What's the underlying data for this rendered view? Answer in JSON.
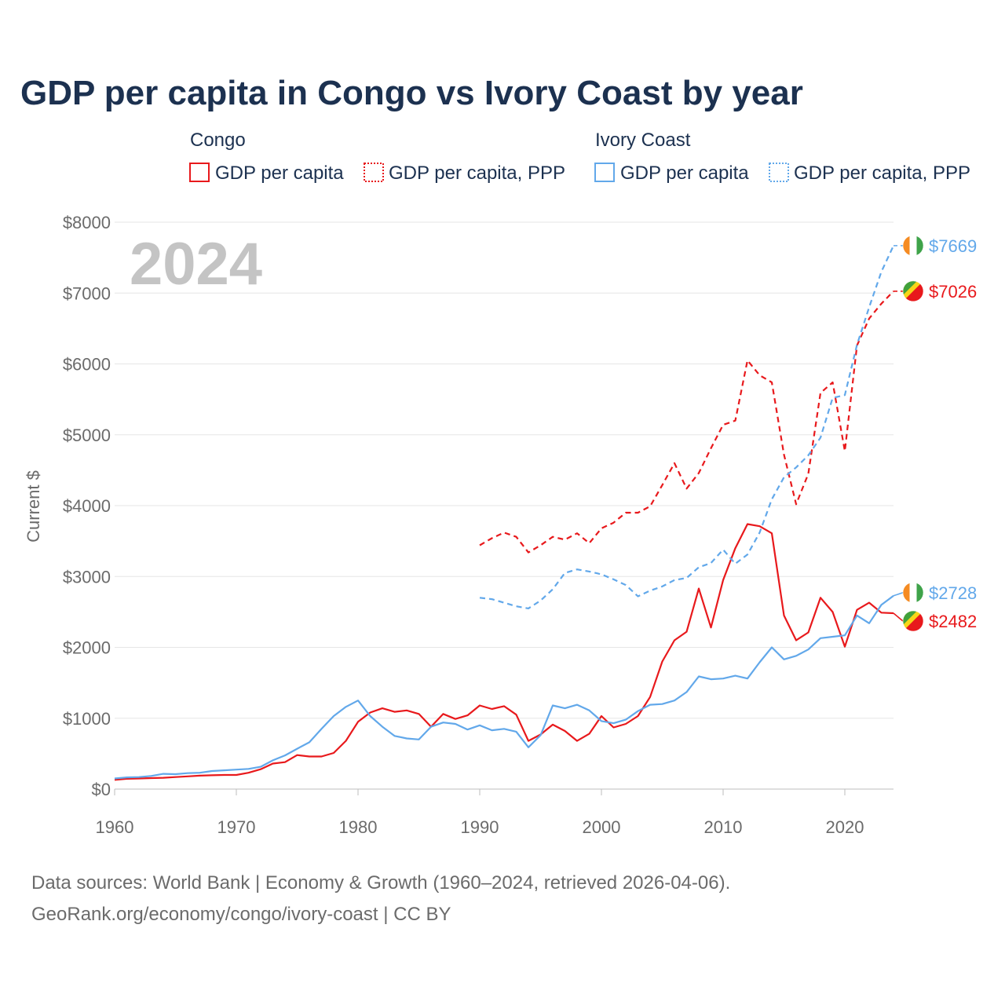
{
  "chart_data": {
    "type": "line",
    "title": "GDP per capita in Congo vs Ivory Coast by year",
    "ylabel": "Current $",
    "xlabel": "",
    "xlim": [
      1960,
      2024
    ],
    "ylim": [
      0,
      8000
    ],
    "x_ticks": [
      1960,
      1970,
      1980,
      1990,
      2000,
      2010,
      2020
    ],
    "x_tick_labels": [
      "1960",
      "1970",
      "1980",
      "1990",
      "2000",
      "2010",
      "2020"
    ],
    "y_ticks": [
      0,
      1000,
      2000,
      3000,
      4000,
      5000,
      6000,
      7000,
      8000
    ],
    "y_tick_labels": [
      "$0",
      "$1000",
      "$2000",
      "$3000",
      "$4000",
      "$5000",
      "$6000",
      "$7000",
      "$8000"
    ],
    "watermark_year": "2024",
    "grid": true,
    "legend": {
      "groups": [
        {
          "name": "Congo",
          "items": [
            "GDP per capita",
            "GDP per capita, PPP"
          ]
        },
        {
          "name": "Ivory Coast",
          "items": [
            "GDP per capita",
            "GDP per capita, PPP"
          ]
        }
      ]
    },
    "series": [
      {
        "name": "Congo GDP per capita",
        "country": "Congo",
        "color": "#e8191c",
        "dashed": false,
        "end_label": "$2482",
        "x": [
          1960,
          1961,
          1962,
          1963,
          1964,
          1965,
          1966,
          1967,
          1968,
          1969,
          1970,
          1971,
          1972,
          1973,
          1974,
          1975,
          1976,
          1977,
          1978,
          1979,
          1980,
          1981,
          1982,
          1983,
          1984,
          1985,
          1986,
          1987,
          1988,
          1989,
          1990,
          1991,
          1992,
          1993,
          1994,
          1995,
          1996,
          1997,
          1998,
          1999,
          2000,
          2001,
          2002,
          2003,
          2004,
          2005,
          2006,
          2007,
          2008,
          2009,
          2010,
          2011,
          2012,
          2013,
          2014,
          2015,
          2016,
          2017,
          2018,
          2019,
          2020,
          2021,
          2022,
          2023,
          2024
        ],
        "values": [
          130,
          145,
          150,
          155,
          160,
          170,
          180,
          190,
          195,
          200,
          200,
          230,
          280,
          360,
          380,
          480,
          460,
          460,
          510,
          680,
          950,
          1080,
          1140,
          1090,
          1110,
          1060,
          880,
          1060,
          990,
          1040,
          1180,
          1130,
          1170,
          1050,
          680,
          770,
          910,
          820,
          680,
          780,
          1030,
          870,
          920,
          1030,
          1300,
          1800,
          2100,
          2220,
          2830,
          2280,
          2950,
          3400,
          3740,
          3710,
          3610,
          2450,
          2100,
          2210,
          2700,
          2500,
          2010,
          2530,
          2630,
          2490,
          2482
        ]
      },
      {
        "name": "Congo GDP per capita, PPP",
        "country": "Congo",
        "color": "#e8191c",
        "dashed": true,
        "end_label": "$7026",
        "x": [
          1990,
          1991,
          1992,
          1993,
          1994,
          1995,
          1996,
          1997,
          1998,
          1999,
          2000,
          2001,
          2002,
          2003,
          2004,
          2005,
          2006,
          2007,
          2008,
          2009,
          2010,
          2011,
          2012,
          2013,
          2014,
          2015,
          2016,
          2017,
          2018,
          2019,
          2020,
          2021,
          2022,
          2023,
          2024
        ],
        "values": [
          3440,
          3540,
          3620,
          3560,
          3340,
          3440,
          3560,
          3520,
          3610,
          3470,
          3680,
          3760,
          3900,
          3900,
          3990,
          4290,
          4600,
          4240,
          4460,
          4810,
          5140,
          5200,
          6050,
          5840,
          5740,
          4720,
          4020,
          4450,
          5590,
          5740,
          4770,
          6260,
          6640,
          6850,
          7026
        ]
      },
      {
        "name": "Ivory Coast GDP per capita",
        "country": "Ivory Coast",
        "color": "#62a8ea",
        "dashed": false,
        "end_label": "$2728",
        "x": [
          1960,
          1961,
          1962,
          1963,
          1964,
          1965,
          1966,
          1967,
          1968,
          1969,
          1970,
          1971,
          1972,
          1973,
          1974,
          1975,
          1976,
          1977,
          1978,
          1979,
          1980,
          1981,
          1982,
          1983,
          1984,
          1985,
          1986,
          1987,
          1988,
          1989,
          1990,
          1991,
          1992,
          1993,
          1994,
          1995,
          1996,
          1997,
          1998,
          1999,
          2000,
          2001,
          2002,
          2003,
          2004,
          2005,
          2006,
          2007,
          2008,
          2009,
          2010,
          2011,
          2012,
          2013,
          2014,
          2015,
          2016,
          2017,
          2018,
          2019,
          2020,
          2021,
          2022,
          2023,
          2024
        ],
        "values": [
          150,
          165,
          170,
          185,
          215,
          210,
          225,
          230,
          255,
          265,
          275,
          285,
          315,
          405,
          475,
          570,
          660,
          850,
          1030,
          1160,
          1250,
          1030,
          880,
          750,
          715,
          700,
          880,
          940,
          920,
          840,
          900,
          830,
          850,
          810,
          590,
          760,
          1180,
          1140,
          1190,
          1110,
          960,
          930,
          980,
          1100,
          1190,
          1200,
          1250,
          1370,
          1590,
          1550,
          1560,
          1600,
          1560,
          1790,
          2000,
          1830,
          1880,
          1970,
          2130,
          2150,
          2170,
          2450,
          2340,
          2600,
          2728
        ]
      },
      {
        "name": "Ivory Coast GDP per capita, PPP",
        "country": "Ivory Coast",
        "color": "#62a8ea",
        "dashed": true,
        "end_label": "$7669",
        "x": [
          1990,
          1991,
          1992,
          1993,
          1994,
          1995,
          1996,
          1997,
          1998,
          1999,
          2000,
          2001,
          2002,
          2003,
          2004,
          2005,
          2006,
          2007,
          2008,
          2009,
          2010,
          2011,
          2012,
          2013,
          2014,
          2015,
          2016,
          2017,
          2018,
          2019,
          2020,
          2021,
          2022,
          2023,
          2024
        ],
        "values": [
          2700,
          2680,
          2630,
          2580,
          2550,
          2660,
          2820,
          3050,
          3100,
          3070,
          3030,
          2960,
          2880,
          2720,
          2800,
          2860,
          2950,
          2980,
          3130,
          3190,
          3380,
          3180,
          3310,
          3620,
          4090,
          4400,
          4540,
          4710,
          4960,
          5520,
          5560,
          6270,
          6800,
          7300,
          7669
        ]
      }
    ]
  },
  "footer": {
    "line1": "Data sources: World Bank | Economy & Growth (1960–2024, retrieved 2026-04-06).",
    "line2": "GeoRank.org/economy/congo/ivory-coast | CC BY"
  }
}
